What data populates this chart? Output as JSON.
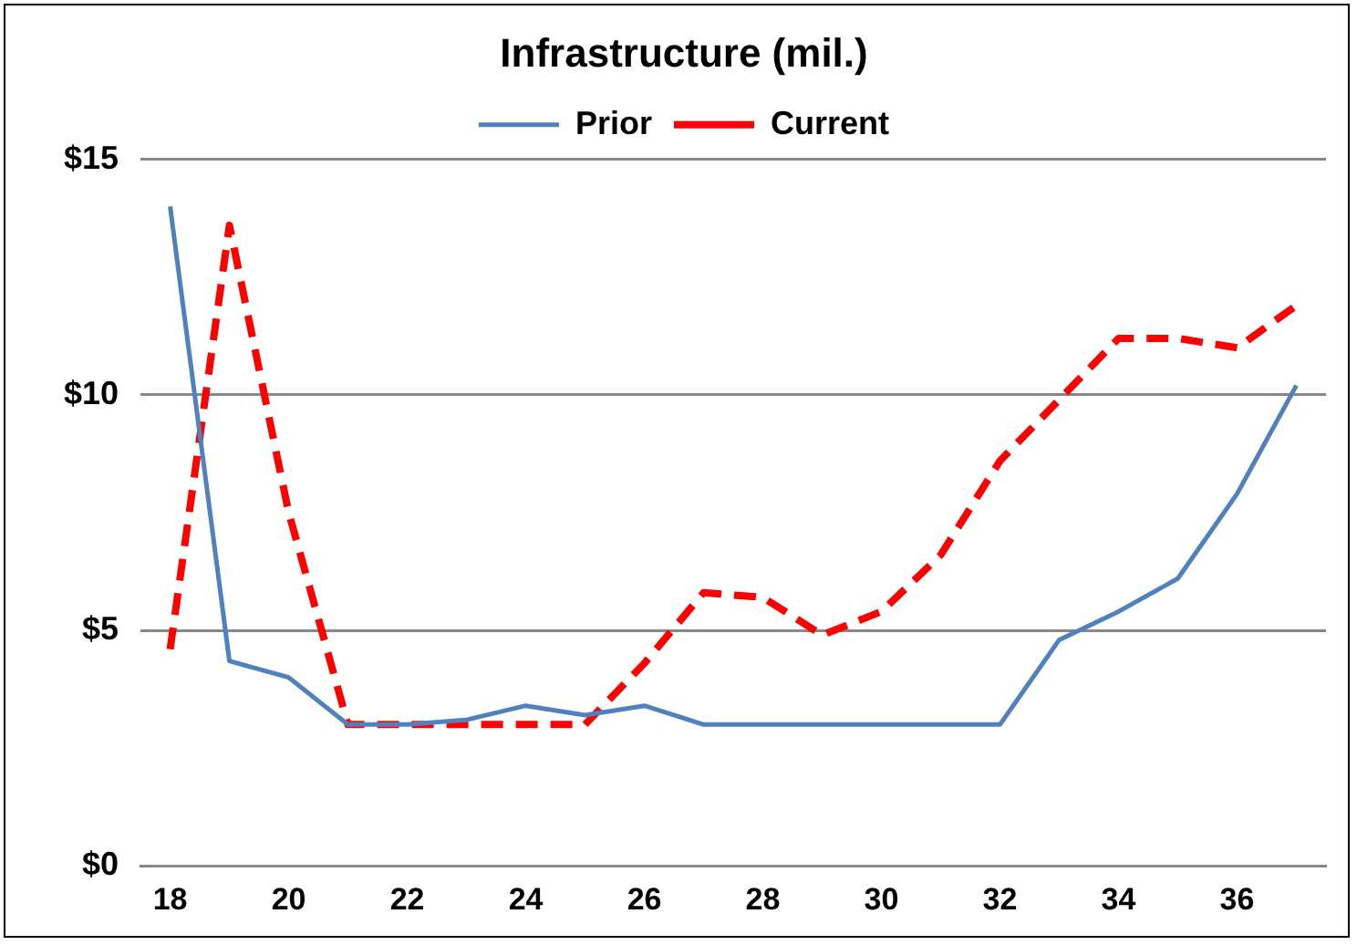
{
  "chart_data": {
    "type": "line",
    "title": "Infrastructure (mil.)",
    "categories": [
      "18",
      null,
      "20",
      null,
      "22",
      null,
      "24",
      null,
      "26",
      null,
      "28",
      null,
      "30",
      null,
      "32",
      null,
      "34",
      null,
      "36",
      null
    ],
    "series": [
      {
        "name": "Prior",
        "color": "#4f81bd",
        "line_style": "solid",
        "values": [
          14.0,
          4.35,
          4.0,
          3.0,
          3.0,
          3.1,
          3.4,
          3.2,
          3.4,
          3.0,
          3.0,
          3.0,
          3.0,
          3.0,
          3.0,
          4.8,
          5.4,
          6.1,
          7.9,
          10.2
        ]
      },
      {
        "name": "Current",
        "color": "#ff0000",
        "line_style": "dashed",
        "values": [
          4.6,
          13.6,
          7.5,
          3.0,
          3.0,
          3.0,
          3.0,
          3.0,
          4.3,
          5.8,
          5.7,
          4.9,
          5.4,
          6.6,
          8.6,
          9.9,
          11.2,
          11.2,
          11.0,
          11.9
        ]
      }
    ],
    "ylim": [
      0,
      15
    ],
    "yticks": [
      {
        "value": 0,
        "label": "$0"
      },
      {
        "value": 5,
        "label": "$5"
      },
      {
        "value": 10,
        "label": "$10"
      },
      {
        "value": 15,
        "label": "$15"
      }
    ],
    "grid": "y",
    "legend": "top",
    "marker": "none"
  }
}
